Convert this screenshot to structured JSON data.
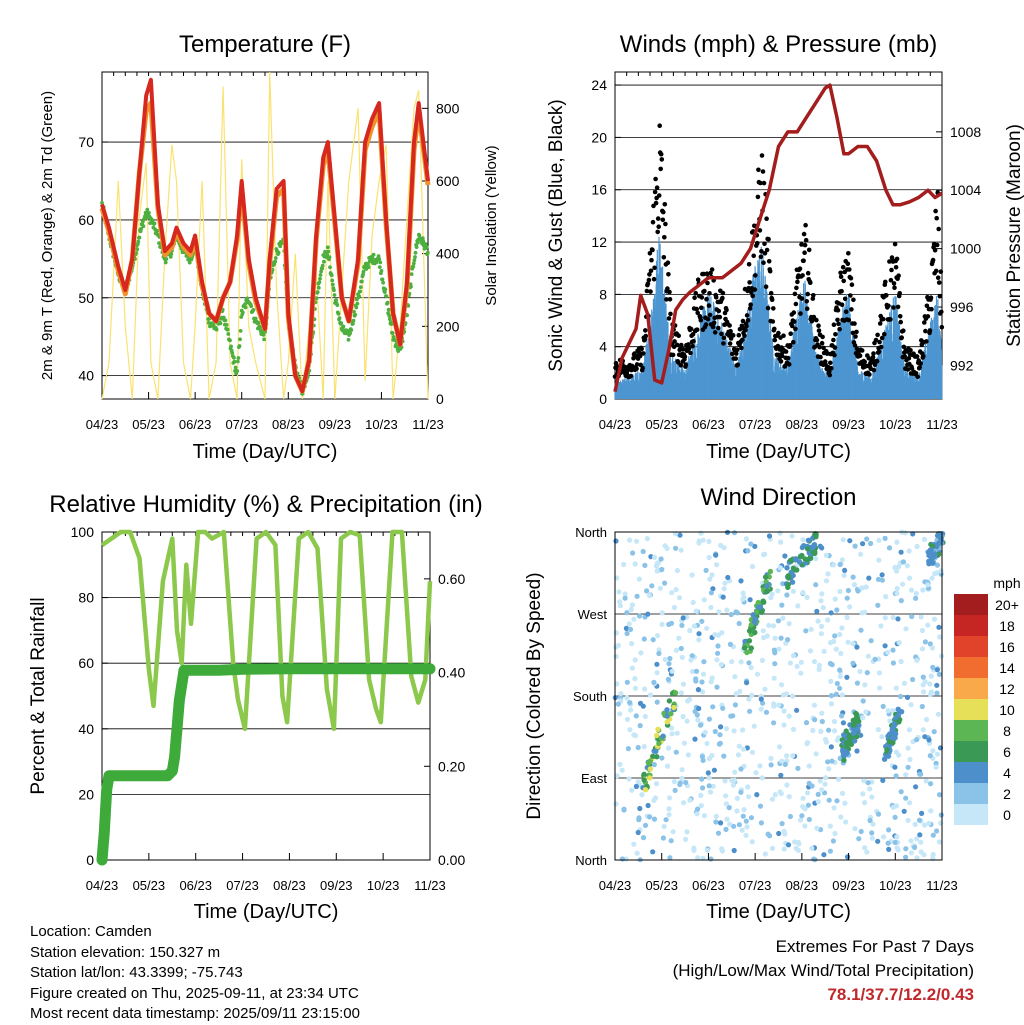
{
  "x_ticks": [
    "04/23",
    "05/23",
    "06/23",
    "07/23",
    "08/23",
    "09/23",
    "10/23",
    "11/23"
  ],
  "colors": {
    "red": "#d7281f",
    "orange": "#f0922b",
    "green": "#4caf3e",
    "yellow": "#fbe270",
    "black": "#000000",
    "blue": "#4d96d1",
    "maroon": "#a31d1d",
    "rh": "#8cc84b",
    "precip": "#3daa3a"
  },
  "chart_data": [
    {
      "id": "temperature",
      "type": "line",
      "title": "Temperature (F)",
      "xlabel": "Time (Day/UTC)",
      "ylabel": "2m & 9m T (Red, Orange) & 2m Td (Green)",
      "y2label": "Solar Insolation (Yellow)",
      "ylim": [
        37,
        79
      ],
      "yticks": [
        40,
        50,
        60,
        70
      ],
      "y2lim": [
        0,
        900
      ],
      "y2ticks": [
        0,
        200,
        400,
        600,
        800
      ],
      "grid": true,
      "x": [
        0,
        0.15,
        0.35,
        0.5,
        0.65,
        0.8,
        0.95,
        1.05,
        1.2,
        1.35,
        1.5,
        1.6,
        1.75,
        1.9,
        2.0,
        2.15,
        2.3,
        2.45,
        2.6,
        2.75,
        2.9,
        3.0,
        3.15,
        3.3,
        3.5,
        3.6,
        3.75,
        3.9,
        4.0,
        4.15,
        4.3,
        4.45,
        4.6,
        4.75,
        4.85,
        5.0,
        5.15,
        5.3,
        5.5,
        5.65,
        5.8,
        5.95,
        6.1,
        6.25,
        6.4,
        6.55,
        6.7,
        6.8,
        7.0
      ],
      "series": [
        {
          "name": "2m T",
          "color_key": "red",
          "values": [
            62,
            59,
            54,
            51,
            55,
            66,
            76,
            78,
            62,
            56,
            57,
            59,
            57,
            56,
            58,
            52,
            48,
            47,
            50,
            52,
            58,
            65,
            55,
            50,
            46,
            55,
            64,
            65,
            48,
            40,
            38,
            42,
            58,
            68,
            70,
            60,
            50,
            47,
            55,
            70,
            73,
            75,
            60,
            48,
            44,
            52,
            70,
            75,
            65
          ]
        },
        {
          "name": "9m T",
          "color_key": "orange",
          "values": [
            61.5,
            58.5,
            53.5,
            50.5,
            55,
            66,
            74,
            75,
            61.5,
            55.5,
            56.5,
            58.5,
            56.5,
            55.5,
            57.5,
            51.5,
            48,
            47,
            50,
            52,
            57.5,
            64,
            54.5,
            49.5,
            46,
            54.5,
            63,
            64,
            47.5,
            40,
            38,
            42,
            57.5,
            67,
            69,
            59.5,
            50,
            47,
            54.5,
            69,
            72,
            74,
            59.5,
            48,
            44,
            51.5,
            69,
            74,
            64.5
          ]
        },
        {
          "name": "2m Td",
          "color_key": "green",
          "values": [
            62,
            58,
            53,
            51,
            54,
            58,
            61,
            60,
            58,
            55,
            56,
            58,
            56,
            55,
            57,
            51,
            47,
            46,
            48,
            44,
            40,
            48,
            50,
            47,
            45,
            52,
            56,
            57,
            47,
            41,
            38,
            41,
            50,
            55,
            56,
            50,
            46,
            45,
            50,
            54,
            55,
            55,
            50,
            45,
            43,
            48,
            55,
            58,
            56
          ]
        },
        {
          "name": "Solar Insolation",
          "color_key": "yellow",
          "axis": "y2",
          "values": [
            0,
            100,
            600,
            200,
            0,
            500,
            650,
            100,
            0,
            400,
            700,
            600,
            100,
            0,
            200,
            600,
            0,
            100,
            860,
            100,
            0,
            660,
            200,
            100,
            0,
            900,
            300,
            0,
            100,
            400,
            0,
            200,
            350,
            0,
            600,
            0,
            300,
            600,
            800,
            50,
            450,
            600,
            700,
            0,
            200,
            500,
            800,
            850,
            0
          ]
        }
      ]
    },
    {
      "id": "winds",
      "type": "scatter",
      "title": "Winds (mph) & Pressure (mb)",
      "xlabel": "Time (Day/UTC)",
      "ylabel": "Sonic Wind & Gust (Blue, Black)",
      "y2label": "Station Pressure (Maroon)",
      "ylim": [
        0,
        25
      ],
      "yticks": [
        0,
        4,
        8,
        12,
        16,
        20,
        24
      ],
      "y2lim": [
        989.7,
        1012.1
      ],
      "y2ticks": [
        992,
        996,
        1000,
        1004,
        1008
      ],
      "grid": true,
      "pressure_x": [
        0,
        0.15,
        0.3,
        0.45,
        0.55,
        0.7,
        0.85,
        1.0,
        1.15,
        1.3,
        1.45,
        1.6,
        1.8,
        2.0,
        2.15,
        2.3,
        2.5,
        2.7,
        2.9,
        3.1,
        3.3,
        3.5,
        3.7,
        3.9,
        4.1,
        4.3,
        4.5,
        4.6,
        4.75,
        4.9,
        5.0,
        5.2,
        5.4,
        5.6,
        5.8,
        5.95,
        6.1,
        6.3,
        6.5,
        6.7,
        6.85,
        7.0
      ],
      "pressure": [
        990.2,
        992.5,
        993.5,
        994.5,
        996.8,
        995.5,
        991,
        990.8,
        993,
        995.8,
        996.5,
        997,
        997.5,
        998,
        998,
        998,
        998.5,
        999,
        1000,
        1002,
        1004,
        1007,
        1008,
        1008,
        1009,
        1010,
        1011,
        1011.2,
        1009,
        1006.5,
        1006.5,
        1007,
        1007,
        1006,
        1004,
        1003,
        1003,
        1003.2,
        1003.5,
        1004,
        1003.5,
        1003.8
      ],
      "wind_x": [
        0,
        0.3,
        0.6,
        0.8,
        0.95,
        1.05,
        1.2,
        1.5,
        1.8,
        2.0,
        2.3,
        2.6,
        2.85,
        3.0,
        3.15,
        3.4,
        3.7,
        3.95,
        4.1,
        4.3,
        4.6,
        4.85,
        5.0,
        5.2,
        5.5,
        5.8,
        6.0,
        6.2,
        6.5,
        6.75,
        6.9,
        7.0
      ],
      "wind": [
        1,
        1.5,
        2,
        7,
        11,
        8,
        3,
        2,
        5,
        7,
        5,
        2,
        6,
        9,
        10,
        3,
        2,
        7,
        8,
        3,
        1.5,
        6,
        7,
        2,
        1.5,
        5,
        7,
        2,
        1.5,
        5,
        7,
        3
      ],
      "gust_x": [
        0,
        0.3,
        0.6,
        0.8,
        0.95,
        1.05,
        1.2,
        1.5,
        1.8,
        2.0,
        2.3,
        2.6,
        2.85,
        3.0,
        3.15,
        3.4,
        3.7,
        3.95,
        4.1,
        4.3,
        4.6,
        4.85,
        5.0,
        5.2,
        5.5,
        5.8,
        6.0,
        6.2,
        6.5,
        6.75,
        6.9,
        7.0
      ],
      "gust": [
        3,
        3,
        4,
        14,
        22,
        16,
        6,
        4,
        9,
        10,
        8,
        4,
        10,
        15,
        19,
        6,
        4,
        11,
        13,
        6,
        3,
        10,
        11,
        4,
        3,
        9,
        12,
        4,
        3,
        9,
        16,
        7
      ]
    },
    {
      "id": "humidity",
      "type": "line",
      "title": "Relative Humidity (%) & Precipitation (in)",
      "xlabel": "Time (Day/UTC)",
      "ylabel": "Percent & Total Rainfall",
      "ylim": [
        0,
        100
      ],
      "yticks": [
        0,
        20,
        40,
        60,
        80,
        100
      ],
      "y2lim": [
        0,
        0.7
      ],
      "y2ticks": [
        "0.00",
        "0.20",
        "0.40",
        "0.60"
      ],
      "grid": true,
      "x": [
        0,
        0.2,
        0.4,
        0.6,
        0.8,
        1.0,
        1.1,
        1.3,
        1.5,
        1.6,
        1.7,
        1.8,
        1.9,
        2.05,
        2.2,
        2.35,
        2.6,
        2.8,
        2.9,
        3.05,
        3.3,
        3.5,
        3.7,
        3.85,
        3.95,
        4.2,
        4.4,
        4.6,
        4.8,
        4.95,
        5.1,
        5.3,
        5.5,
        5.7,
        5.85,
        5.95,
        6.2,
        6.4,
        6.6,
        6.75,
        6.9,
        7.0
      ],
      "series": [
        {
          "name": "Relative Humidity",
          "color_key": "rh",
          "values": [
            96,
            98,
            100,
            100,
            92,
            58,
            47,
            85,
            98,
            70,
            60,
            90,
            72,
            100,
            100,
            98,
            100,
            60,
            49,
            40,
            98,
            100,
            96,
            50,
            42,
            98,
            100,
            95,
            52,
            40,
            98,
            100,
            99,
            55,
            46,
            42,
            100,
            100,
            56,
            48,
            55,
            85
          ]
        },
        {
          "name": "Total Precipitation",
          "color_key": "precip",
          "axis": "y2",
          "x": [
            0,
            0.05,
            0.1,
            0.15,
            0.3,
            0.6,
            0.9,
            1.2,
            1.4,
            1.5,
            1.55,
            1.6,
            1.65,
            1.75,
            1.85,
            2.0,
            2.5,
            3.0,
            4.0,
            5.0,
            6.0,
            7.0
          ],
          "values": [
            0,
            0.06,
            0.15,
            0.18,
            0.18,
            0.18,
            0.18,
            0.18,
            0.18,
            0.19,
            0.22,
            0.28,
            0.34,
            0.405,
            0.405,
            0.405,
            0.405,
            0.407,
            0.408,
            0.408,
            0.408,
            0.408
          ]
        }
      ]
    },
    {
      "id": "wind_direction",
      "type": "scatter",
      "title": "Wind Direction",
      "xlabel": "Time (Day/UTC)",
      "ylabel": "Direction (Colored By Speed)",
      "yticks": [
        "North",
        "East",
        "South",
        "West",
        "North"
      ],
      "ylim": [
        0,
        360
      ],
      "legend": {
        "title": "mph",
        "levels": [
          "0",
          "2",
          "4",
          "6",
          "8",
          "10",
          "12",
          "14",
          "16",
          "18",
          "20+"
        ],
        "colors": [
          "#c5e7f8",
          "#8ac2e8",
          "#4d8fcb",
          "#3a9a55",
          "#5db654",
          "#e6df58",
          "#f9a94a",
          "#f06d2f",
          "#e0422a",
          "#c52623",
          "#a31d1f"
        ]
      },
      "episodes": [
        {
          "x": [
            0.6,
            1.3
          ],
          "dir": [
            80,
            180
          ],
          "speed": [
            4,
            11
          ]
        },
        {
          "x": [
            2.8,
            3.3
          ],
          "dir": [
            230,
            310
          ],
          "speed": [
            4,
            8
          ]
        },
        {
          "x": [
            3.65,
            4.3
          ],
          "dir": [
            310,
            350
          ],
          "speed": [
            3,
            7
          ]
        },
        {
          "x": [
            4.85,
            5.2
          ],
          "dir": [
            120,
            150
          ],
          "speed": [
            3,
            7
          ]
        },
        {
          "x": [
            5.8,
            6.1
          ],
          "dir": [
            120,
            160
          ],
          "speed": [
            3,
            7
          ]
        },
        {
          "x": [
            6.75,
            7.0
          ],
          "dir": [
            330,
            360
          ],
          "speed": [
            2,
            6
          ]
        }
      ]
    }
  ],
  "info": {
    "location": "Location: Camden",
    "elevation": "Station elevation: 150.327 m",
    "latlon": "Station lat/lon: 43.3399; -75.743",
    "created": "Figure created on Thu, 2025-09-11, at 23:34 UTC",
    "recent": "Most recent data timestamp: 2025/09/11 23:15:00"
  },
  "extremes": {
    "line1": "Extremes For Past 7 Days",
    "line2": "(High/Low/Max Wind/Total Precipitation)",
    "values": "78.1/37.7/12.2/0.43"
  }
}
